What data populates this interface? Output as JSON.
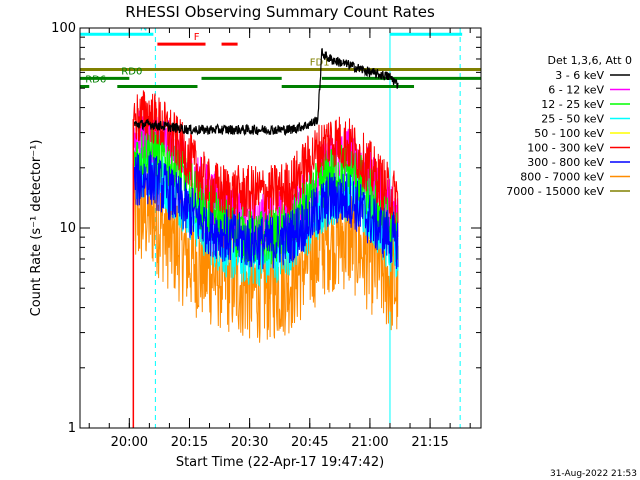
{
  "chart_data": {
    "type": "line",
    "title": "RHESSI Observing Summary Count Rates",
    "xlabel": "Start Time (22-Apr-17 19:47:42)",
    "ylabel": "Count Rate (s⁻¹ detector⁻¹)",
    "y_scale": "log",
    "ylim": [
      1,
      100
    ],
    "xlim": [
      "19:47:42",
      "21:27:42"
    ],
    "x_ticks": [
      "20:00",
      "20:15",
      "20:30",
      "20:45",
      "21:00",
      "21:15"
    ],
    "y_ticks": [
      "1",
      "10",
      "100"
    ],
    "legend": {
      "header": "Det 1,3,6, Att 0",
      "placement": "right"
    },
    "series": [
      {
        "name": "3 - 6 keV",
        "color": "#000000",
        "x": [
          "20:01",
          "20:05",
          "20:10",
          "20:15",
          "20:20",
          "20:25",
          "20:30",
          "20:35",
          "20:40",
          "20:45",
          "20:47",
          "20:48",
          "20:50",
          "20:55",
          "21:00",
          "21:05",
          "21:07"
        ],
        "y": [
          33,
          33,
          32,
          31,
          31,
          31,
          31,
          31,
          31,
          33,
          35,
          75,
          70,
          65,
          60,
          57,
          52
        ]
      },
      {
        "name": "6 - 12 keV",
        "color": "#ff00ff",
        "x": [
          "20:01",
          "20:05",
          "20:10",
          "20:15",
          "20:20",
          "20:25",
          "20:30",
          "20:35",
          "20:40",
          "20:45",
          "20:50",
          "20:55",
          "21:00",
          "21:05",
          "21:07"
        ],
        "y": [
          28,
          30,
          25,
          19,
          15,
          12,
          11,
          11,
          12,
          16,
          22,
          24,
          18,
          13,
          11
        ]
      },
      {
        "name": "12 - 25 keV",
        "color": "#00ff00",
        "x": [
          "20:01",
          "20:05",
          "20:10",
          "20:15",
          "20:20",
          "20:25",
          "20:30",
          "20:35",
          "20:40",
          "20:45",
          "20:50",
          "20:55",
          "21:00",
          "21:05",
          "21:07"
        ],
        "y": [
          22,
          25,
          21,
          16,
          12,
          10,
          9,
          9,
          10,
          14,
          19,
          20,
          15,
          10,
          9
        ]
      },
      {
        "name": "25 - 50 keV",
        "color": "#00ffff",
        "x": [
          "20:01",
          "20:05",
          "20:10",
          "20:15",
          "20:20",
          "20:25",
          "20:30",
          "20:35",
          "20:40",
          "20:45",
          "20:50",
          "20:55",
          "21:00",
          "21:05",
          "21:07"
        ],
        "y": [
          18,
          20,
          16,
          12,
          9,
          7.5,
          7,
          7,
          8,
          10,
          14,
          15,
          12,
          8,
          7
        ]
      },
      {
        "name": "50 - 100 keV",
        "color": "#ffff00",
        "x": [
          "20:01",
          "20:07"
        ],
        "y": [
          1,
          1
        ]
      },
      {
        "name": "100 - 300 keV",
        "color": "#ff0000",
        "x": [
          "20:01",
          "20:05",
          "20:10",
          "20:15",
          "20:20",
          "20:25",
          "20:30",
          "20:35",
          "20:40",
          "20:45",
          "20:50",
          "20:55",
          "21:00",
          "21:05",
          "21:07"
        ],
        "y": [
          35,
          37,
          30,
          22,
          16,
          15,
          15,
          15,
          16,
          22,
          28,
          26,
          20,
          15,
          14
        ]
      },
      {
        "name": "300 - 800 keV",
        "color": "#0000ff",
        "x": [
          "20:01",
          "20:05",
          "20:10",
          "20:15",
          "20:20",
          "20:25",
          "20:30",
          "20:35",
          "20:40",
          "20:45",
          "20:50",
          "20:55",
          "21:00",
          "21:05",
          "21:07"
        ],
        "y": [
          17,
          18,
          15,
          12,
          10,
          9,
          8.5,
          8.5,
          9,
          11,
          14,
          14,
          11,
          9,
          8.5
        ]
      },
      {
        "name": "800 - 7000 keV",
        "color": "#ff8c00",
        "x": [
          "20:01",
          "20:05",
          "20:10",
          "20:15",
          "20:20",
          "20:25",
          "20:30",
          "20:35",
          "20:40",
          "20:45",
          "20:50",
          "20:55",
          "21:00",
          "21:05",
          "21:07"
        ],
        "y": [
          11,
          12,
          9,
          7,
          6,
          5.5,
          5,
          5,
          5.5,
          7,
          9,
          9,
          7,
          5.5,
          5
        ]
      },
      {
        "name": "7000 - 15000 keV",
        "color": "#808000",
        "x": [],
        "y": []
      }
    ],
    "flags": [
      {
        "label": "N",
        "color": "#00ffff",
        "segments": [
          [
            "19:47:42",
            "20:06"
          ],
          [
            "21:05",
            "21:23"
          ]
        ],
        "y": 93
      },
      {
        "label": "F",
        "color": "#ff0000",
        "segments": [
          [
            "20:07",
            "20:19"
          ],
          [
            "20:23",
            "20:27"
          ]
        ],
        "y": 83
      },
      {
        "label": "FD1",
        "color": "#808000",
        "segments": [
          [
            "19:47:42",
            "21:27:42"
          ]
        ],
        "y": 62,
        "label_at": "20:45"
      },
      {
        "label": "RD0",
        "color": "#008000",
        "segments": [
          [
            "19:47:42",
            "20:00"
          ],
          [
            "20:18",
            "20:38"
          ],
          [
            "20:48",
            "21:27:42"
          ]
        ],
        "y": 56,
        "label_at": "19:58"
      },
      {
        "label": "RD6",
        "color": "#008000",
        "segments": [
          [
            "19:47:42",
            "19:50"
          ],
          [
            "19:57",
            "20:17"
          ],
          [
            "20:38",
            "21:11"
          ]
        ],
        "y": 51,
        "label_at": "19:49"
      }
    ],
    "vertical_lines": [
      {
        "x": "20:06:30",
        "color": "#00ffff",
        "style": "dashed"
      },
      {
        "x": "21:05",
        "color": "#00ffff",
        "style": "solid"
      },
      {
        "x": "21:22:30",
        "color": "#00ffff",
        "style": "dashed"
      }
    ],
    "colors": {
      "axes": "#000000",
      "background": "#ffffff"
    }
  },
  "footer": {
    "timestamp": "31-Aug-2022 21:53"
  }
}
